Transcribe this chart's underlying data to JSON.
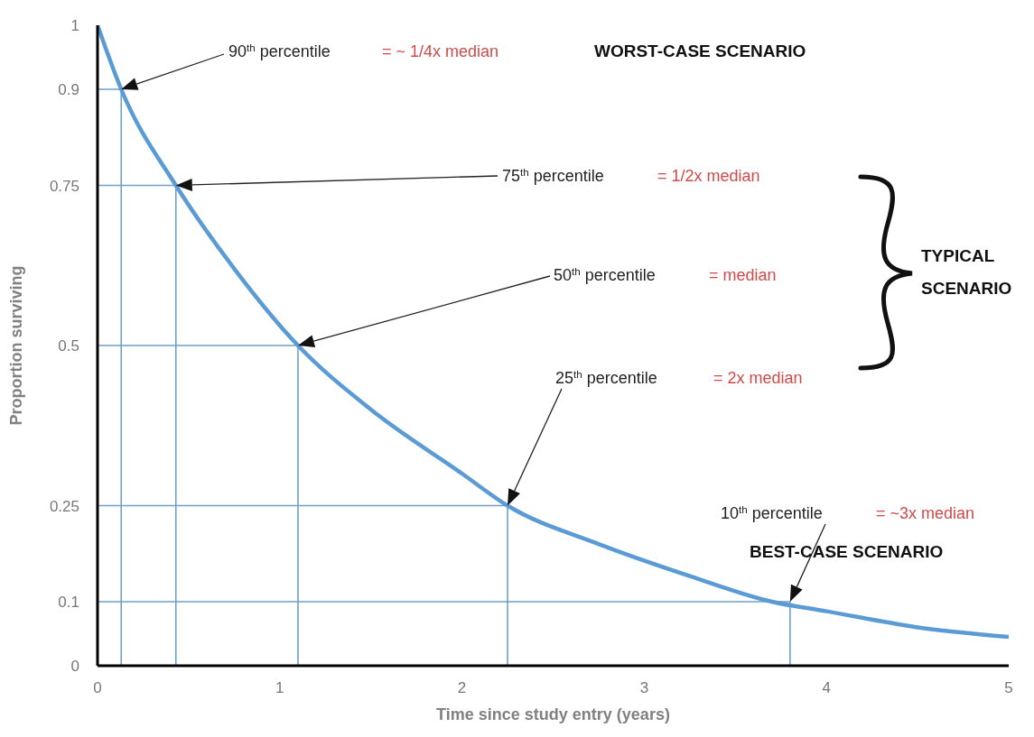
{
  "chart_data": {
    "type": "line",
    "xlabel": "Time since study entry (years)",
    "ylabel": "Proportion surviving",
    "x": [
      0,
      0.13,
      0.43,
      0.75,
      1.1,
      1.5,
      2.0,
      2.25,
      2.75,
      3.25,
      3.7,
      4.0,
      4.5,
      5.0
    ],
    "series": [
      {
        "color": "#5b9bd5",
        "values": [
          1,
          0.9,
          0.75,
          0.62,
          0.5,
          0.4,
          0.3,
          0.25,
          0.19,
          0.14,
          0.1,
          0.085,
          0.06,
          0.045
        ]
      },
      {
        "color": "#6fa0c8",
        "x": [
          0,
          0.13,
          0.13
        ],
        "values": [
          0.9,
          0.9,
          0
        ]
      },
      {
        "color": "#6fa0c8",
        "x": [
          0,
          0.43,
          0.43
        ],
        "values": [
          0.75,
          0.75,
          0
        ]
      },
      {
        "color": "#6fa0c8",
        "x": [
          0,
          1.1,
          1.1
        ],
        "values": [
          0.5,
          0.5,
          0
        ]
      },
      {
        "color": "#6fa0c8",
        "x": [
          0,
          2.25,
          2.25
        ],
        "values": [
          0.25,
          0.25,
          0
        ]
      },
      {
        "color": "#6fa0c8",
        "x": [
          0,
          3.8,
          3.8
        ],
        "values": [
          0.1,
          0.1,
          0
        ]
      }
    ],
    "xlim": [
      0,
      5
    ],
    "xticks": [
      0,
      1,
      2,
      3,
      4,
      5
    ],
    "ylim": [
      0,
      1
    ],
    "yticks": [
      0,
      0.1,
      0.25,
      0.5,
      0.75,
      0.9,
      1
    ],
    "grid": false,
    "marker": "none",
    "line_style": "solid",
    "annotations": [
      "90$^{th}$ percentile",
      "= ~ 1/4x median",
      "WORST-CASE SCENARIO",
      "75$^{th}$ percentile",
      "= 1/2x median",
      "50$^{th}$ percentile",
      "= median",
      "25$^{th}$ percentile",
      "= 2x median",
      "10$^{th}$ percentile",
      "= ~3x median",
      "BEST-CASE SCENARIO",
      "TYPICAL SCENARIO"
    ]
  }
}
